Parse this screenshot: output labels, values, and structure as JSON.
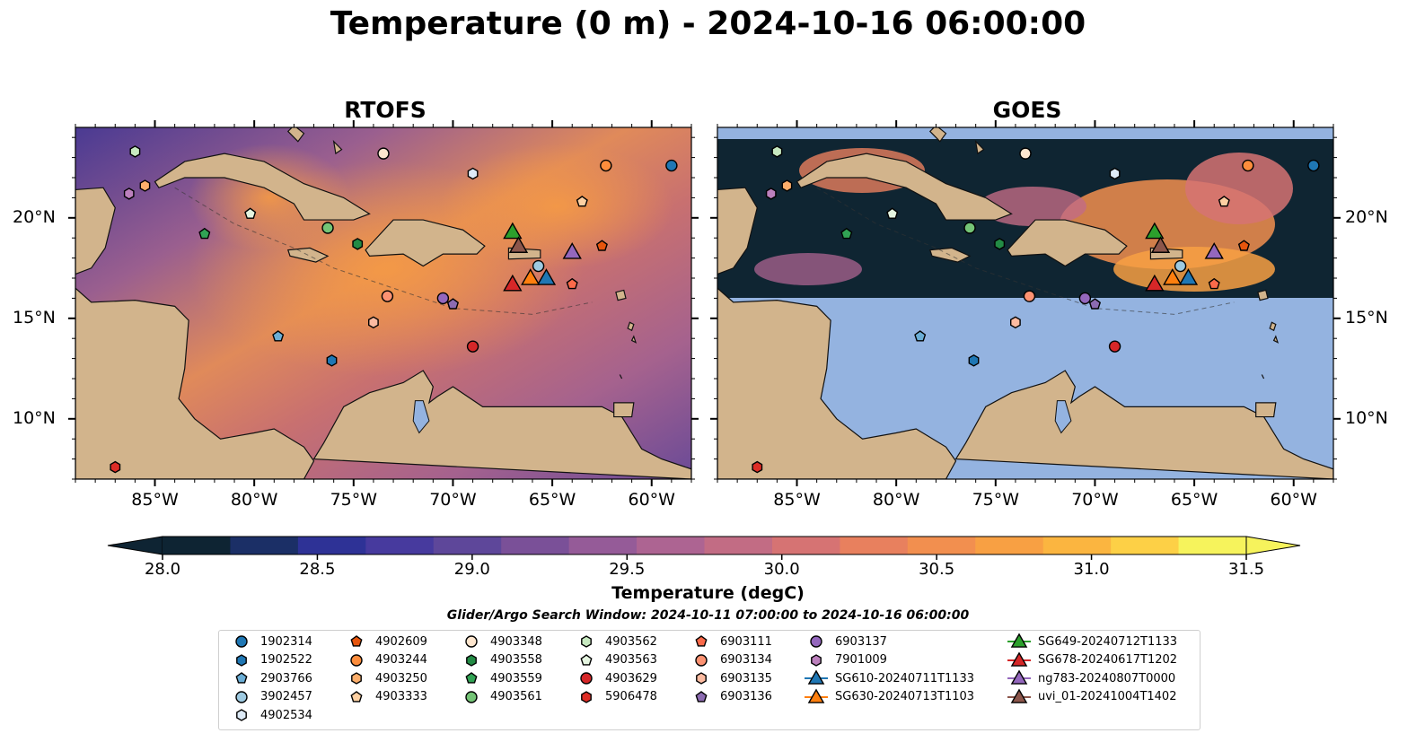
{
  "title": "Temperature (0 m) - 2024-10-16 06:00:00",
  "panels": [
    {
      "title": "RTOFS"
    },
    {
      "title": "GOES"
    }
  ],
  "axes": {
    "lon_labels": [
      "85°W",
      "80°W",
      "75°W",
      "70°W",
      "65°W",
      "60°W"
    ],
    "lat_labels": [
      "20°N",
      "15°N",
      "10°N"
    ],
    "lon_range": [
      -89.0,
      -58.0
    ],
    "lat_range": [
      7.0,
      24.5
    ]
  },
  "colorbar": {
    "title": "Temperature (degC)",
    "ticks": [
      "28.0",
      "28.5",
      "29.0",
      "29.5",
      "30.0",
      "30.5",
      "31.0",
      "31.5"
    ],
    "range": [
      28.0,
      31.5
    ],
    "colors": [
      "#0e2433",
      "#1b2f66",
      "#2e3296",
      "#473a9e",
      "#5e479a",
      "#7a5098",
      "#955b98",
      "#ad6492",
      "#c26c84",
      "#d67373",
      "#e8805e",
      "#f28f4f",
      "#f8a043",
      "#fbb540",
      "#fdd046",
      "#f6f35c"
    ]
  },
  "search_window": "Glider/Argo Search Window: 2024-10-11 07:00:00 to 2024-10-16 06:00:00",
  "legend": {
    "columns": [
      [
        {
          "label": "1902314",
          "marker": "circle",
          "color": "#1f77b4"
        },
        {
          "label": "1902522",
          "marker": "hexagon",
          "color": "#1f77b4"
        },
        {
          "label": "2903766",
          "marker": "pentagon",
          "color": "#6baed6"
        },
        {
          "label": "3902457",
          "marker": "circle",
          "color": "#9ecae1"
        },
        {
          "label": "4902534",
          "marker": "hexagon",
          "color": "#deebf7"
        }
      ],
      [
        {
          "label": "4902609",
          "marker": "pentagon",
          "color": "#e6550d"
        },
        {
          "label": "4903244",
          "marker": "circle",
          "color": "#fd8d3c"
        },
        {
          "label": "4903250",
          "marker": "hexagon",
          "color": "#fdae6b"
        },
        {
          "label": "4903333",
          "marker": "pentagon",
          "color": "#fdd0a2"
        }
      ],
      [
        {
          "label": "4903348",
          "marker": "circle",
          "color": "#fee6ce"
        },
        {
          "label": "4903558",
          "marker": "hexagon",
          "color": "#238b45"
        },
        {
          "label": "4903559",
          "marker": "pentagon",
          "color": "#31a354"
        },
        {
          "label": "4903561",
          "marker": "circle",
          "color": "#74c476"
        }
      ],
      [
        {
          "label": "4903562",
          "marker": "hexagon",
          "color": "#c7e9c0"
        },
        {
          "label": "4903563",
          "marker": "pentagon",
          "color": "#e5f5e0"
        },
        {
          "label": "4903629",
          "marker": "circle",
          "color": "#d62728"
        },
        {
          "label": "5906478",
          "marker": "hexagon",
          "color": "#de2d26"
        }
      ],
      [
        {
          "label": "6903111",
          "marker": "pentagon",
          "color": "#fb6a4a"
        },
        {
          "label": "6903134",
          "marker": "circle",
          "color": "#fc9272"
        },
        {
          "label": "6903135",
          "marker": "hexagon",
          "color": "#fcbba1"
        },
        {
          "label": "6903136",
          "marker": "pentagon",
          "color": "#8c6bb1"
        }
      ],
      [
        {
          "label": "6903137",
          "marker": "circle",
          "color": "#9467bd"
        },
        {
          "label": "7901009",
          "marker": "hexagon",
          "color": "#bc80bd"
        },
        {
          "label": "SG610-20240711T1133",
          "marker": "triangle-line",
          "color": "#1f77b4"
        },
        {
          "label": "SG630-20240713T1103",
          "marker": "triangle-line",
          "color": "#ff7f0e"
        }
      ],
      [
        {
          "label": "SG649-20240712T1133",
          "marker": "triangle-line",
          "color": "#2ca02c"
        },
        {
          "label": "SG678-20240617T1202",
          "marker": "triangle-line",
          "color": "#d62728"
        },
        {
          "label": "ng783-20240807T0000",
          "marker": "triangle-line",
          "color": "#9467bd"
        },
        {
          "label": "uvi_01-20241004T1402",
          "marker": "triangle-line",
          "color": "#8c564b"
        }
      ]
    ]
  },
  "floats": [
    {
      "label": "1902314",
      "lon": -59.0,
      "lat": 22.6
    },
    {
      "label": "1902522",
      "lon": -76.1,
      "lat": 12.9
    },
    {
      "label": "2903766",
      "lon": -78.8,
      "lat": 14.1
    },
    {
      "label": "3902457",
      "lon": -65.7,
      "lat": 17.6
    },
    {
      "label": "4902534",
      "lon": -69.0,
      "lat": 22.2
    },
    {
      "label": "4902609",
      "lon": -62.5,
      "lat": 18.6
    },
    {
      "label": "4903244",
      "lon": -62.3,
      "lat": 22.6
    },
    {
      "label": "4903250",
      "lon": -85.5,
      "lat": 21.6
    },
    {
      "label": "4903333",
      "lon": -63.5,
      "lat": 20.8
    },
    {
      "label": "4903348",
      "lon": -73.5,
      "lat": 23.2
    },
    {
      "label": "4903558",
      "lon": -74.8,
      "lat": 18.7
    },
    {
      "label": "4903559",
      "lon": -82.5,
      "lat": 19.2
    },
    {
      "label": "4903561",
      "lon": -76.3,
      "lat": 19.5
    },
    {
      "label": "4903562",
      "lon": -86.0,
      "lat": 23.3
    },
    {
      "label": "4903563",
      "lon": -80.2,
      "lat": 20.2
    },
    {
      "label": "4903629",
      "lon": -69.0,
      "lat": 13.6
    },
    {
      "label": "5906478",
      "lon": -87.0,
      "lat": 7.6
    },
    {
      "label": "6903111",
      "lon": -64.0,
      "lat": 16.7
    },
    {
      "label": "6903134",
      "lon": -73.3,
      "lat": 16.1
    },
    {
      "label": "6903135",
      "lon": -74.0,
      "lat": 14.8
    },
    {
      "label": "6903136",
      "lon": -70.0,
      "lat": 15.7
    },
    {
      "label": "6903137",
      "lon": -70.5,
      "lat": 16.0
    },
    {
      "label": "7901009",
      "lon": -86.3,
      "lat": 21.2
    },
    {
      "label": "SG610-20240711T1133",
      "lon": -65.3,
      "lat": 17.0
    },
    {
      "label": "SG630-20240713T1103",
      "lon": -66.1,
      "lat": 17.0
    },
    {
      "label": "SG649-20240712T1133",
      "lon": -67.0,
      "lat": 19.3
    },
    {
      "label": "SG678-20240617T1202",
      "lon": -67.0,
      "lat": 16.7
    },
    {
      "label": "ng783-20240807T0000",
      "lon": -64.0,
      "lat": 18.3
    },
    {
      "label": "uvi_01-20241004T1402",
      "lon": -66.7,
      "lat": 18.6
    }
  ]
}
